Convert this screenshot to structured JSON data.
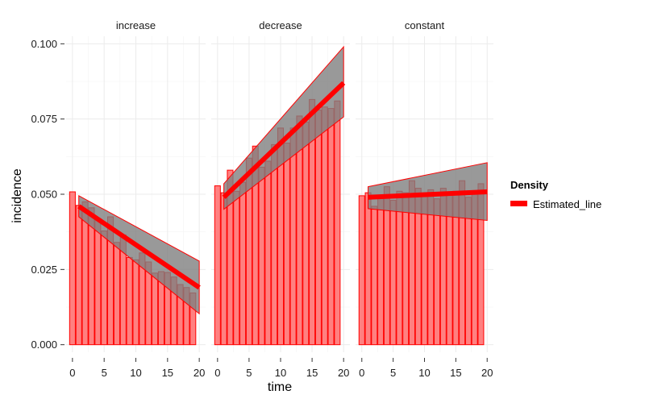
{
  "chart_data": {
    "type": "bar",
    "xlabel": "time",
    "ylabel": "incidence",
    "xlim": [
      -1,
      21
    ],
    "ylim": [
      -0.0025,
      0.1025
    ],
    "x_ticks": [
      0,
      5,
      10,
      15,
      20
    ],
    "y_ticks": [
      0.0,
      0.025,
      0.05,
      0.075,
      0.1
    ],
    "y_tick_labels": [
      "0.000",
      "0.025",
      "0.050",
      "0.075",
      "0.100"
    ],
    "x_tick_labels": [
      "0",
      "5",
      "10",
      "15",
      "20"
    ],
    "grid": true,
    "legend": {
      "title": "Density",
      "placement": "right",
      "entries": [
        {
          "label": "Estimated_line",
          "color": "#ff0000"
        }
      ]
    },
    "colors": {
      "bar_fill": "#ff8080",
      "bar_stroke": "#ff0000",
      "band_fill": "#808080",
      "line": "#ff0000",
      "grid": "#ebebeb"
    },
    "panels": [
      {
        "strip": "increase",
        "x": [
          0,
          1,
          2,
          3,
          4,
          5,
          6,
          7,
          8,
          9,
          10,
          11,
          12,
          13,
          14,
          15,
          16,
          17,
          18,
          19
        ],
        "values": [
          0.0508,
          0.0463,
          0.0475,
          0.0455,
          0.0415,
          0.0378,
          0.0425,
          0.034,
          0.0365,
          0.029,
          0.0282,
          0.0305,
          0.0275,
          0.0238,
          0.0243,
          0.024,
          0.0225,
          0.02,
          0.019,
          0.0172
        ],
        "line": {
          "x": [
            1,
            20
          ],
          "y": [
            0.046,
            0.019
          ]
        },
        "band": {
          "x": [
            1,
            20
          ],
          "upper": [
            0.0495,
            0.0278
          ],
          "lower": [
            0.0425,
            0.0103
          ]
        }
      },
      {
        "strip": "decrease",
        "x": [
          0,
          1,
          2,
          3,
          4,
          5,
          6,
          7,
          8,
          9,
          10,
          11,
          12,
          13,
          14,
          15,
          16,
          17,
          18,
          19
        ],
        "values": [
          0.0528,
          0.0505,
          0.058,
          0.051,
          0.054,
          0.062,
          0.066,
          0.059,
          0.061,
          0.0665,
          0.072,
          0.067,
          0.072,
          0.076,
          0.074,
          0.0815,
          0.078,
          0.079,
          0.0785,
          0.081
        ],
        "line": {
          "x": [
            1,
            20
          ],
          "y": [
            0.049,
            0.087
          ]
        },
        "band": {
          "x": [
            1,
            20
          ],
          "upper": [
            0.0535,
            0.099
          ],
          "lower": [
            0.045,
            0.0757
          ]
        }
      },
      {
        "strip": "constant",
        "x": [
          0,
          1,
          2,
          3,
          4,
          5,
          6,
          7,
          8,
          9,
          10,
          11,
          12,
          13,
          14,
          15,
          16,
          17,
          18,
          19
        ],
        "values": [
          0.0495,
          0.0505,
          0.046,
          0.049,
          0.0525,
          0.048,
          0.051,
          0.0505,
          0.0545,
          0.052,
          0.05,
          0.0515,
          0.0485,
          0.052,
          0.05,
          0.051,
          0.0545,
          0.049,
          0.0505,
          0.0535
        ],
        "line": {
          "x": [
            1,
            20
          ],
          "y": [
            0.049,
            0.0508
          ]
        },
        "band": {
          "x": [
            1,
            20
          ],
          "upper": [
            0.0525,
            0.0605
          ],
          "lower": [
            0.0452,
            0.0413
          ]
        }
      }
    ]
  }
}
